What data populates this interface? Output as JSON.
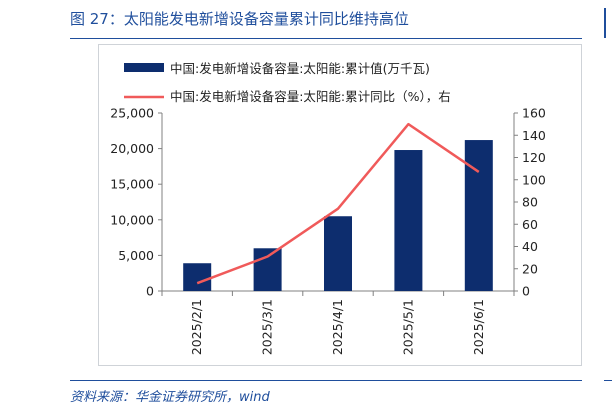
{
  "figure": {
    "title": "图 27：太阳能发电新增设备容量累计同比维持高位",
    "source": "资料来源：华金证券研究所，wind"
  },
  "colors": {
    "bar": "#0d2d6e",
    "line": "#f05a5a",
    "title": "#1f4e9c",
    "axis": "#808080",
    "text": "#222222"
  },
  "chart_data": {
    "type": "bar",
    "categories": [
      "2025/2/1",
      "2025/3/1",
      "2025/4/1",
      "2025/5/1",
      "2025/6/1"
    ],
    "series": [
      {
        "name": "中国:发电新增设备容量:太阳能:累计值(万千瓦)",
        "type": "bar",
        "axis": "left",
        "values": [
          3900,
          6000,
          10500,
          19800,
          21200
        ]
      },
      {
        "name": "中国:发电新增设备容量:太阳能:累计同比（%），右",
        "type": "line",
        "axis": "right",
        "values": [
          7,
          31,
          74,
          150,
          107
        ]
      }
    ],
    "ylim_left": [
      0,
      25000
    ],
    "yticks_left": [
      "0",
      "5,000",
      "10,000",
      "15,000",
      "20,000",
      "25,000"
    ],
    "ylim_right": [
      0,
      160
    ],
    "yticks_right": [
      "0",
      "20",
      "40",
      "60",
      "80",
      "100",
      "120",
      "140",
      "160"
    ],
    "grid": false,
    "legend": "top-left"
  }
}
